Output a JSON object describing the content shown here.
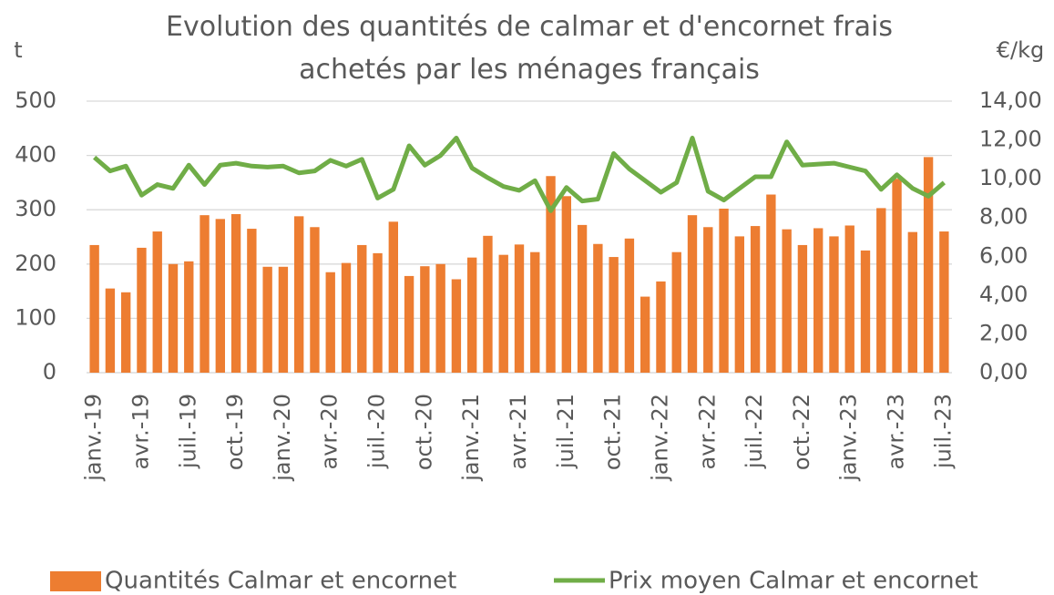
{
  "chart_data": {
    "type": "bar_line",
    "title": "Evolution des quantités de calmar et d'encornet frais achetés par les ménages français",
    "y_label": "t",
    "y2_label": "€/kg",
    "categories": [
      "janv.-19",
      null,
      null,
      "avr.-19",
      null,
      null,
      "juil.-19",
      null,
      null,
      "oct.-19",
      null,
      null,
      "janv.-20",
      null,
      null,
      "avr.-20",
      null,
      null,
      "juil.-20",
      null,
      null,
      "oct.-20",
      null,
      null,
      "janv.-21",
      null,
      null,
      "avr.-21",
      null,
      null,
      "juil.-21",
      null,
      null,
      "oct.-21",
      null,
      null,
      "janv.-22",
      null,
      null,
      "avr.-22",
      null,
      null,
      "juil.-22",
      null,
      null,
      "oct.-22",
      null,
      null,
      "janv.-23",
      null,
      null,
      "avr.-23",
      null,
      null,
      "juil.-23"
    ],
    "series": [
      {
        "name": "Quantités Calmar et encornet",
        "type": "bar",
        "color": "#ed7d31",
        "values": [
          235,
          155,
          148,
          230,
          260,
          200,
          205,
          290,
          283,
          292,
          265,
          195,
          195,
          288,
          268,
          185,
          202,
          235,
          220,
          278,
          178,
          196,
          200,
          172,
          212,
          252,
          217,
          236,
          222,
          362,
          325,
          272,
          237,
          213,
          247,
          140,
          168,
          222,
          290,
          268,
          302,
          251,
          270,
          328,
          264,
          235,
          266,
          251,
          271,
          225,
          303,
          357,
          259,
          397,
          260
        ]
      },
      {
        "name": "Prix moyen Calmar et encornet",
        "type": "line",
        "axis": "y2",
        "color": "#70ad47",
        "values": [
          11.1,
          10.4,
          10.65,
          9.15,
          9.7,
          9.5,
          10.7,
          9.7,
          10.7,
          10.8,
          10.65,
          10.6,
          10.65,
          10.3,
          10.4,
          10.95,
          10.65,
          11.0,
          9.0,
          9.45,
          11.7,
          10.7,
          11.2,
          12.1,
          10.55,
          10.05,
          9.6,
          9.4,
          9.9,
          8.35,
          9.55,
          8.85,
          8.95,
          11.3,
          10.5,
          9.9,
          9.3,
          9.8,
          12.1,
          9.35,
          8.9,
          9.5,
          10.1,
          10.1,
          11.9,
          10.7,
          10.75,
          10.8,
          10.6,
          10.4,
          9.45,
          10.2,
          9.5,
          9.1,
          9.8
        ]
      }
    ],
    "ylim": [
      0,
      500
    ],
    "yticks": [
      0,
      100,
      200,
      300,
      400,
      500
    ],
    "y2lim": [
      0,
      14
    ],
    "y2ticks": [
      {
        "value": 0,
        "label": "0,00"
      },
      {
        "value": 2,
        "label": "2,00"
      },
      {
        "value": 4,
        "label": "4,00"
      },
      {
        "value": 6,
        "label": "6,00"
      },
      {
        "value": 8,
        "label": "8,00"
      },
      {
        "value": 10,
        "label": "10,00"
      },
      {
        "value": 12,
        "label": "12,00"
      },
      {
        "value": 14,
        "label": "14,00"
      }
    ],
    "grid": true,
    "legend": "bottom"
  }
}
